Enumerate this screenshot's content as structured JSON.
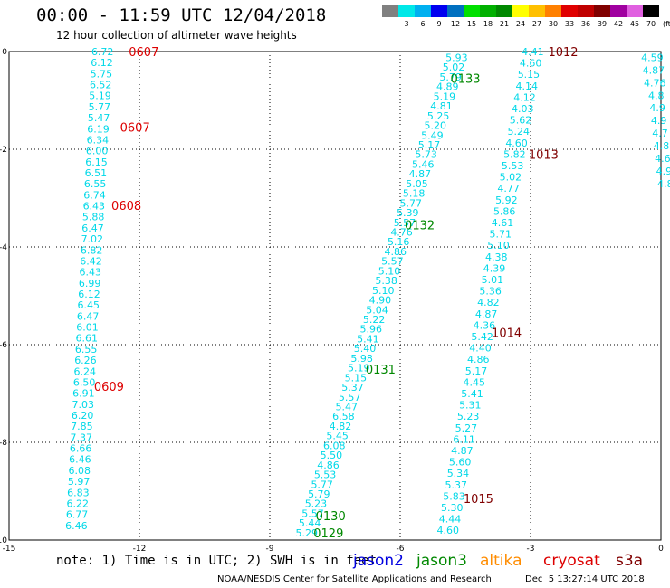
{
  "title": "00:00 - 11:59 UTC 12/04/2018",
  "subtitle": "12 hour collection of altimeter wave heights",
  "color_scale": {
    "unit": "(ft)",
    "bins": [
      {
        "label": "",
        "color": "#808080"
      },
      {
        "label": "3",
        "color": "#00e8e8"
      },
      {
        "label": "6",
        "color": "#00b0f0"
      },
      {
        "label": "9",
        "color": "#0000f0"
      },
      {
        "label": "12",
        "color": "#0070c0"
      },
      {
        "label": "15",
        "color": "#00e000"
      },
      {
        "label": "18",
        "color": "#00b000"
      },
      {
        "label": "21",
        "color": "#008800"
      },
      {
        "label": "24",
        "color": "#ffff00"
      },
      {
        "label": "27",
        "color": "#ffc000"
      },
      {
        "label": "30",
        "color": "#ff8000"
      },
      {
        "label": "33",
        "color": "#e00000"
      },
      {
        "label": "36",
        "color": "#c00000"
      },
      {
        "label": "39",
        "color": "#800000"
      },
      {
        "label": "42",
        "color": "#a000a0"
      },
      {
        "label": "45",
        "color": "#e060e0"
      },
      {
        "label": "70",
        "color": "#000000"
      }
    ]
  },
  "footer": {
    "note": "note: 1) Time is in UTC; 2) SWH is in feet",
    "legend": [
      {
        "name": "jason2",
        "color": "#0000e0"
      },
      {
        "name": "jason3",
        "color": "#008800"
      },
      {
        "name": "altika",
        "color": "#ff8c00"
      },
      {
        "name": "cryosat",
        "color": "#dd0000"
      },
      {
        "name": "s3a",
        "color": "#800000"
      }
    ],
    "credit": "NOAA/NESDIS Center for Satellite Applications and Research",
    "generated": "Dec  5 13:27:14 UTC 2018"
  },
  "chart_data": {
    "type": "scatter",
    "xlim": [
      -15,
      0
    ],
    "ylim": [
      -10,
      0
    ],
    "xticks": [
      "-15",
      "-12",
      "-9",
      "-6",
      "-3",
      "0"
    ],
    "yticks": [
      "0",
      "-2",
      "-4",
      "-6",
      "-8",
      "-10"
    ],
    "grid": true,
    "swh_color": "#00d8e8",
    "tracks": [
      {
        "values": [
          "6.72",
          "6.12",
          "5.75",
          "6.52",
          "5.19",
          "5.77",
          "5.47",
          "6.19",
          "6.34",
          "6.00",
          "6.15",
          "6.51",
          "6.55",
          "6.74",
          "6.43",
          "5.88",
          "6.47",
          "7.02",
          "6.82",
          "6.42",
          "6.43",
          "6.99",
          "6.12",
          "6.45",
          "6.47",
          "6.01",
          "6.61",
          "6.55",
          "6.26",
          "6.24",
          "6.50",
          "6.91",
          "7.03",
          "6.20",
          "7.85",
          "7.37",
          "6.66",
          "6.46",
          "6.08",
          "5.97",
          "6.83",
          "6.22",
          "6.77",
          "6.46"
        ],
        "x_start": -12.85,
        "y_start": 0.0,
        "x_end": -13.45,
        "y_end": -9.7
      },
      {
        "values": [
          "5.93",
          "5.02",
          "5.79",
          "4.89",
          "5.19",
          "4.81",
          "5.25",
          "5.20",
          "5.49",
          "5.17",
          "5.73",
          "5.46",
          "4.87",
          "5.05",
          "5.18",
          "5.77",
          "5.39",
          "5.57",
          "4.76",
          "5.16",
          "4.86",
          "5.57",
          "5.10",
          "5.38",
          "5.10",
          "4.90",
          "5.04",
          "5.22",
          "5.96",
          "5.41",
          "5.40",
          "5.98",
          "5.19",
          "5.15",
          "5.37",
          "5.57",
          "5.47",
          "6.58",
          "4.82",
          "5.45",
          "6.08",
          "5.50",
          "4.86",
          "5.53",
          "5.77",
          "5.79",
          "5.23",
          "5.57",
          "5.44",
          "5.29"
        ],
        "x_start": -4.7,
        "y_start": -0.12,
        "x_end": -8.15,
        "y_end": -9.85
      },
      {
        "values": [
          "4.41",
          "4.60",
          "5.15",
          "4.14",
          "4.12",
          "4.03",
          "5.62",
          "5.24",
          "4.60",
          "5.82",
          "5.53",
          "5.02",
          "4.77",
          "5.92",
          "5.86",
          "4.61",
          "5.71",
          "5.10",
          "4.38",
          "4.39",
          "5.01",
          "5.36",
          "4.82",
          "4.87",
          "4.36",
          "5.42",
          "4.40",
          "4.86",
          "5.17",
          "4.45",
          "5.41",
          "5.31",
          "5.23",
          "5.27",
          "6.11",
          "4.87",
          "5.60",
          "5.34",
          "5.37",
          "5.83",
          "5.30",
          "4.44",
          "4.60"
        ],
        "x_start": -2.95,
        "y_start": 0.0,
        "x_end": -4.9,
        "y_end": -9.8
      },
      {
        "values": [
          "4.59",
          "4.87",
          "4.76",
          "4.8",
          "4.9",
          "4.9",
          "4.7",
          "4.8",
          "4.6",
          "4.9",
          "4.8"
        ],
        "x_start": -0.2,
        "y_start": -0.12,
        "x_end": 0.1,
        "y_end": -2.7
      }
    ],
    "passes": [
      {
        "label": "0607",
        "x": -11.9,
        "y": 0.0,
        "color": "#dd0000"
      },
      {
        "label": "0607",
        "x": -12.1,
        "y": -1.55,
        "color": "#dd0000"
      },
      {
        "label": "0608",
        "x": -12.3,
        "y": -3.15,
        "color": "#dd0000"
      },
      {
        "label": "0609",
        "x": -12.7,
        "y": -6.85,
        "color": "#dd0000"
      },
      {
        "label": "1012",
        "x": -2.25,
        "y": 0.0,
        "color": "#800000"
      },
      {
        "label": "1013",
        "x": -2.7,
        "y": -2.1,
        "color": "#800000"
      },
      {
        "label": "1014",
        "x": -3.55,
        "y": -5.75,
        "color": "#800000"
      },
      {
        "label": "1015",
        "x": -4.2,
        "y": -9.15,
        "color": "#800000"
      },
      {
        "label": "0133",
        "x": -4.5,
        "y": -0.55,
        "color": "#008800"
      },
      {
        "label": "0132",
        "x": -5.55,
        "y": -3.55,
        "color": "#008800"
      },
      {
        "label": "0131",
        "x": -6.45,
        "y": -6.5,
        "color": "#008800"
      },
      {
        "label": "0130",
        "x": -7.6,
        "y": -9.5,
        "color": "#008800"
      },
      {
        "label": "0129",
        "x": -7.65,
        "y": -9.85,
        "color": "#008800"
      }
    ]
  }
}
